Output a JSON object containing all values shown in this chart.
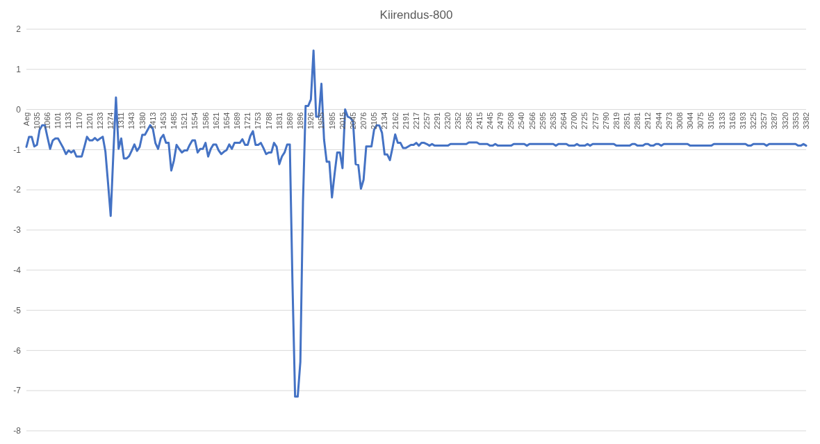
{
  "chart_data": {
    "type": "line",
    "title": "Kiirendus-800",
    "categories": [
      "Aeg",
      null,
      null,
      null,
      "1035",
      null,
      null,
      null,
      "1066",
      null,
      null,
      null,
      "1101",
      null,
      null,
      null,
      "1133",
      null,
      null,
      null,
      "1170",
      null,
      null,
      null,
      "1201",
      null,
      null,
      null,
      "1233",
      null,
      null,
      null,
      "1274",
      null,
      null,
      null,
      "1311",
      null,
      null,
      null,
      "1343",
      null,
      null,
      null,
      "1380",
      null,
      null,
      null,
      "1413",
      null,
      null,
      null,
      "1453",
      null,
      null,
      null,
      "1485",
      null,
      null,
      null,
      "1521",
      null,
      null,
      null,
      "1554",
      null,
      null,
      null,
      "1586",
      null,
      null,
      null,
      "1621",
      null,
      null,
      null,
      "1654",
      null,
      null,
      null,
      "1689",
      null,
      null,
      null,
      "1721",
      null,
      null,
      null,
      "1753",
      null,
      null,
      null,
      "1788",
      null,
      null,
      null,
      "1831",
      null,
      null,
      null,
      "1869",
      null,
      null,
      null,
      "1896",
      null,
      null,
      null,
      "1926",
      null,
      null,
      null,
      "1955",
      null,
      null,
      null,
      "1985",
      null,
      null,
      null,
      "2015",
      null,
      null,
      null,
      "2045",
      null,
      null,
      null,
      "2076",
      null,
      null,
      null,
      "2105",
      null,
      null,
      null,
      "2134",
      null,
      null,
      null,
      "2162",
      null,
      null,
      null,
      "2191",
      null,
      null,
      null,
      "2217",
      null,
      null,
      null,
      "2257",
      null,
      null,
      null,
      "2291",
      null,
      null,
      null,
      "2320",
      null,
      null,
      null,
      "2352",
      null,
      null,
      null,
      "2385",
      null,
      null,
      null,
      "2415",
      null,
      null,
      null,
      "2445",
      null,
      null,
      null,
      "2479",
      null,
      null,
      null,
      "2508",
      null,
      null,
      null,
      "2540",
      null,
      null,
      null,
      "2566",
      null,
      null,
      null,
      "2595",
      null,
      null,
      null,
      "2635",
      null,
      null,
      null,
      "2664",
      null,
      null,
      null,
      "2700",
      null,
      null,
      null,
      "2725",
      null,
      null,
      null,
      "2757",
      null,
      null,
      null,
      "2790",
      null,
      null,
      null,
      "2819",
      null,
      null,
      null,
      "2851",
      null,
      null,
      null,
      "2881",
      null,
      null,
      null,
      "2912",
      null,
      null,
      null,
      "2944",
      null,
      null,
      null,
      "2973",
      null,
      null,
      null,
      "3008",
      null,
      null,
      null,
      "3044",
      null,
      null,
      null,
      "3075",
      null,
      null,
      null,
      "3105",
      null,
      null,
      null,
      "3133",
      null,
      null,
      null,
      "3163",
      null,
      null,
      null,
      "3193",
      null,
      null,
      null,
      "3225",
      null,
      null,
      null,
      "3257",
      null,
      null,
      null,
      "3287",
      null,
      null,
      null,
      "3320",
      null,
      null,
      null,
      "3353",
      null,
      null,
      null,
      "3382"
    ],
    "series": [
      {
        "color": "#4472c4",
        "values": [
          -0.93,
          -0.68,
          -0.68,
          -0.92,
          -0.88,
          -0.51,
          -0.39,
          -0.39,
          -0.69,
          -0.98,
          -0.77,
          -0.72,
          -0.72,
          -0.84,
          -0.96,
          -1.11,
          -1.02,
          -1.07,
          -1.02,
          -1.17,
          -1.17,
          -1.17,
          -0.93,
          -0.68,
          -0.77,
          -0.77,
          -0.71,
          -0.77,
          -0.72,
          -0.68,
          -1.05,
          -1.84,
          -2.65,
          -1.11,
          0.3,
          -0.98,
          -0.72,
          -1.22,
          -1.22,
          -1.16,
          -1.02,
          -0.87,
          -1.03,
          -0.93,
          -0.63,
          -0.63,
          -0.51,
          -0.39,
          -0.48,
          -0.84,
          -0.98,
          -0.72,
          -0.63,
          -0.83,
          -0.83,
          -1.52,
          -1.27,
          -0.88,
          -0.98,
          -1.07,
          -1.02,
          -1.02,
          -0.88,
          -0.77,
          -0.77,
          -1.07,
          -0.98,
          -0.98,
          -0.83,
          -1.17,
          -0.98,
          -0.87,
          -0.87,
          -1.02,
          -1.11,
          -1.05,
          -1.01,
          -0.87,
          -0.98,
          -0.83,
          -0.83,
          -0.83,
          -0.74,
          -0.88,
          -0.88,
          -0.66,
          -0.54,
          -0.88,
          -0.88,
          -0.83,
          -0.96,
          -1.11,
          -1.07,
          -1.07,
          -0.83,
          -0.93,
          -1.36,
          -1.17,
          -1.07,
          -0.87,
          -0.87,
          -4.3,
          -7.15,
          -7.15,
          -6.28,
          -2.3,
          0.09,
          0.09,
          0.25,
          1.47,
          -0.18,
          -0.18,
          0.64,
          -0.75,
          -1.3,
          -1.3,
          -2.19,
          -1.6,
          -1.07,
          -1.07,
          -1.46,
          0,
          -0.18,
          -0.21,
          -0.3,
          -1.36,
          -1.38,
          -1.97,
          -1.75,
          -0.92,
          -0.92,
          -0.92,
          -0.5,
          -0.39,
          -0.4,
          -0.58,
          -1.12,
          -1.12,
          -1.26,
          -0.95,
          -0.62,
          -0.83,
          -0.83,
          -0.96,
          -0.96,
          -0.92,
          -0.88,
          -0.88,
          -0.83,
          -0.9,
          -0.83,
          -0.83,
          -0.86,
          -0.9,
          -0.86,
          -0.9,
          -0.9,
          -0.9,
          -0.9,
          -0.9,
          -0.9,
          -0.86,
          -0.86,
          -0.86,
          -0.86,
          -0.86,
          -0.86,
          -0.86,
          -0.82,
          -0.82,
          -0.82,
          -0.82,
          -0.86,
          -0.86,
          -0.86,
          -0.86,
          -0.9,
          -0.9,
          -0.86,
          -0.9,
          -0.9,
          -0.9,
          -0.9,
          -0.9,
          -0.9,
          -0.86,
          -0.86,
          -0.86,
          -0.86,
          -0.86,
          -0.9,
          -0.86,
          -0.86,
          -0.86,
          -0.86,
          -0.86,
          -0.86,
          -0.86,
          -0.86,
          -0.86,
          -0.86,
          -0.9,
          -0.86,
          -0.86,
          -0.86,
          -0.86,
          -0.9,
          -0.9,
          -0.9,
          -0.86,
          -0.9,
          -0.9,
          -0.9,
          -0.86,
          -0.9,
          -0.86,
          -0.86,
          -0.86,
          -0.86,
          -0.86,
          -0.86,
          -0.86,
          -0.86,
          -0.86,
          -0.9,
          -0.9,
          -0.9,
          -0.9,
          -0.9,
          -0.9,
          -0.86,
          -0.86,
          -0.9,
          -0.9,
          -0.9,
          -0.86,
          -0.86,
          -0.9,
          -0.9,
          -0.86,
          -0.86,
          -0.9,
          -0.86,
          -0.86,
          -0.86,
          -0.86,
          -0.86,
          -0.86,
          -0.86,
          -0.86,
          -0.86,
          -0.86,
          -0.9,
          -0.9,
          -0.9,
          -0.9,
          -0.9,
          -0.9,
          -0.9,
          -0.9,
          -0.9,
          -0.86,
          -0.86,
          -0.86,
          -0.86,
          -0.86,
          -0.86,
          -0.86,
          -0.86,
          -0.86,
          -0.86,
          -0.86,
          -0.86,
          -0.86,
          -0.9,
          -0.9,
          -0.86,
          -0.86,
          -0.86,
          -0.86,
          -0.86,
          -0.9,
          -0.86,
          -0.86,
          -0.86,
          -0.86,
          -0.86,
          -0.86,
          -0.86,
          -0.86,
          -0.86,
          -0.86,
          -0.86,
          -0.9,
          -0.9,
          -0.86,
          -0.9
        ]
      }
    ],
    "ylim": [
      -8,
      2
    ],
    "yticks": [
      -8,
      -7,
      -6,
      -5,
      -4,
      -3,
      -2,
      -1,
      0,
      1,
      2
    ],
    "grid": "y",
    "marker": "none"
  }
}
